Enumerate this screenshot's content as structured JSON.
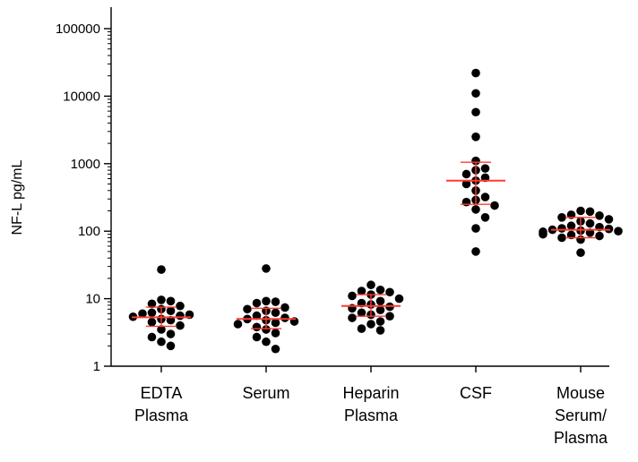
{
  "chart_data": {
    "type": "scatter",
    "ylabel": "NF-L pg/mL",
    "yscale": "log",
    "ylim": [
      1,
      100000
    ],
    "yticks": [
      {
        "value": 1,
        "label": "1"
      },
      {
        "value": 10,
        "label": "10"
      },
      {
        "value": 100,
        "label": "100"
      },
      {
        "value": 1000,
        "label": "1000"
      },
      {
        "value": 10000,
        "label": "10000"
      },
      {
        "value": 100000,
        "label": "100000"
      }
    ],
    "grid": false,
    "point_color": "#000000",
    "summary_color": "#ff3b30",
    "categories": [
      {
        "label_lines": [
          "EDTA",
          "Plasma"
        ],
        "median": 5.3,
        "err_low": 3.9,
        "err_high": 7.5,
        "points": [
          27,
          9.6,
          9.2,
          8.4,
          7.8,
          7.0,
          6.6,
          6.2,
          6.0,
          5.8,
          5.6,
          5.4,
          5.0,
          4.8,
          4.5,
          4.0,
          3.5,
          3.0,
          2.7,
          2.3,
          2.0
        ]
      },
      {
        "label_lines": [
          "Serum"
        ],
        "median": 5.0,
        "err_low": 3.6,
        "err_high": 7.2,
        "points": [
          28,
          9.2,
          9.0,
          8.6,
          7.4,
          7.0,
          6.6,
          6.2,
          5.6,
          5.2,
          5.0,
          4.8,
          4.6,
          4.4,
          4.2,
          3.8,
          3.5,
          3.1,
          2.7,
          2.3,
          1.8
        ]
      },
      {
        "label_lines": [
          "Heparin",
          "Plasma"
        ],
        "median": 7.8,
        "err_low": 5.5,
        "err_high": 11.5,
        "points": [
          16,
          13.5,
          13,
          12.5,
          11.5,
          11,
          10,
          9.2,
          8.6,
          8.2,
          7.6,
          7.2,
          6.8,
          6.2,
          5.8,
          5.5,
          5.2,
          4.6,
          4.2,
          3.6,
          3.4
        ]
      },
      {
        "label_lines": [
          "CSF"
        ],
        "median": 560,
        "err_low": 250,
        "err_high": 1050,
        "points": [
          22000,
          11000,
          5800,
          2500,
          1100,
          850,
          800,
          700,
          620,
          560,
          500,
          400,
          320,
          290,
          270,
          240,
          210,
          160,
          110,
          50
        ]
      },
      {
        "label_lines": [
          "Mouse",
          "Serum/",
          "Plasma"
        ],
        "median": 105,
        "err_low": 80,
        "err_high": 160,
        "points": [
          200,
          195,
          175,
          170,
          160,
          150,
          140,
          130,
          120,
          115,
          110,
          108,
          105,
          102,
          100,
          98,
          95,
          90,
          88,
          85,
          80,
          75,
          48
        ]
      }
    ]
  }
}
